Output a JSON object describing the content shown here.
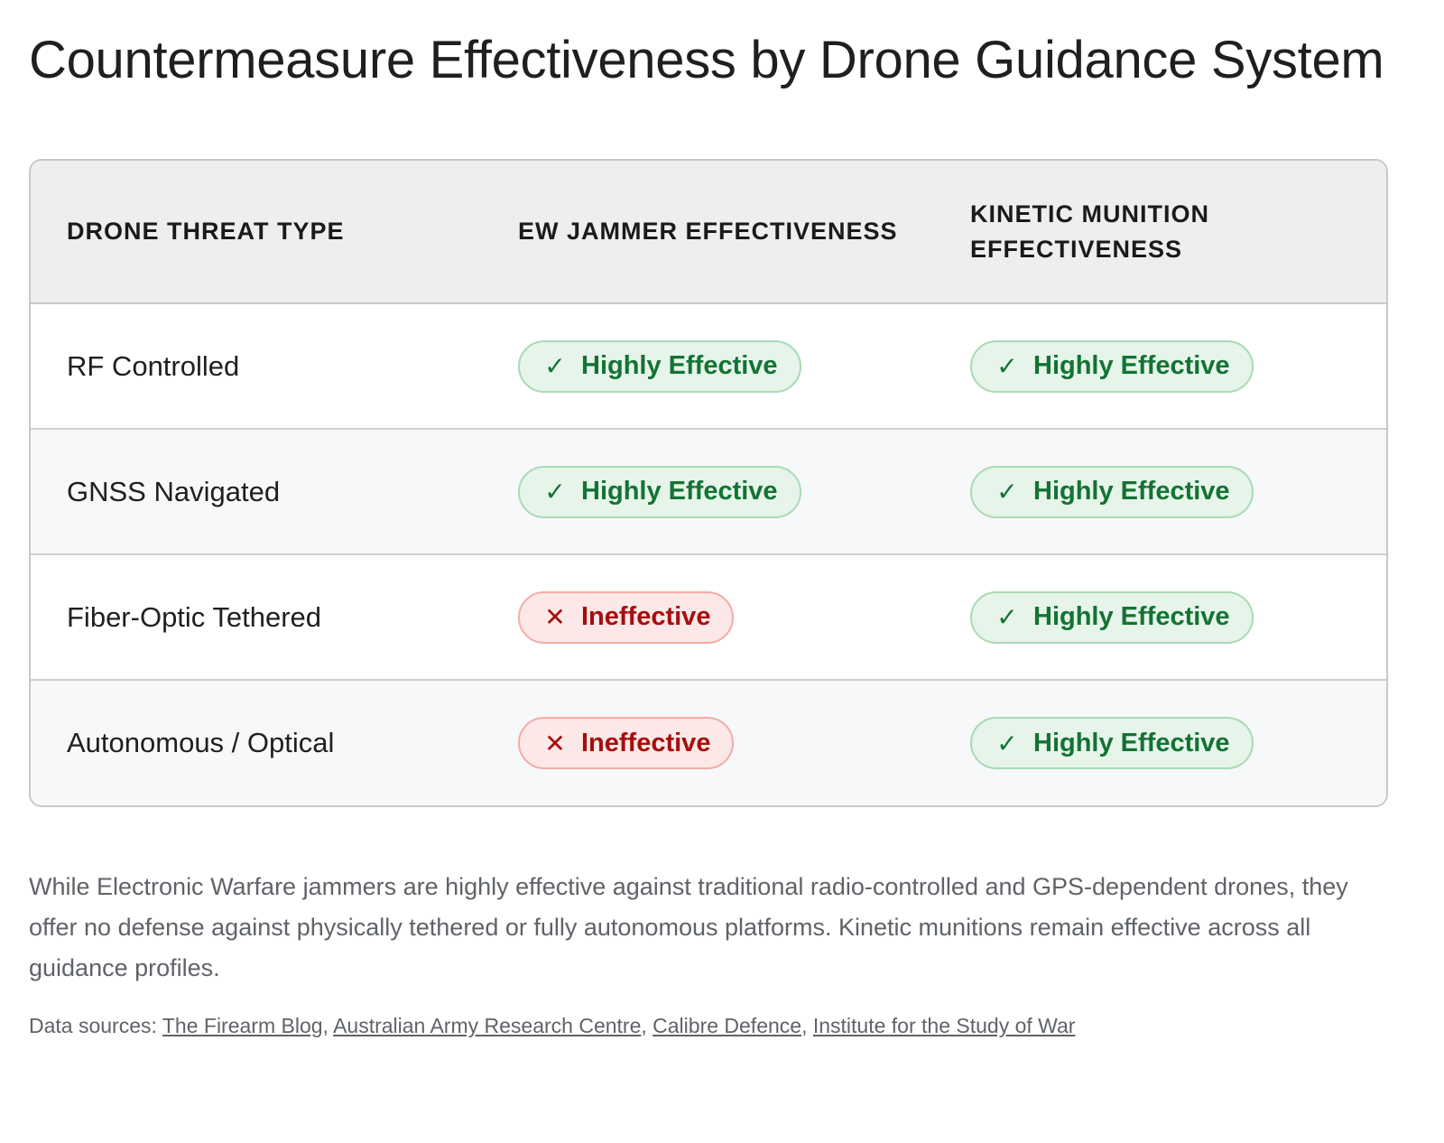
{
  "title": "Countermeasure Effectiveness by Drone Guidance System",
  "table": {
    "headers": [
      "DRONE THREAT TYPE",
      "EW JAMMER EFFECTIVENESS",
      "KINETIC MUNITION EFFECTIVENESS"
    ],
    "rows": [
      {
        "threat": "RF Controlled",
        "ew": {
          "label": "Highly Effective",
          "status": "good",
          "icon": "check-icon",
          "glyph": "✓"
        },
        "kinetic": {
          "label": "Highly Effective",
          "status": "good",
          "icon": "check-icon",
          "glyph": "✓"
        }
      },
      {
        "threat": "GNSS Navigated",
        "ew": {
          "label": "Highly Effective",
          "status": "good",
          "icon": "check-icon",
          "glyph": "✓"
        },
        "kinetic": {
          "label": "Highly Effective",
          "status": "good",
          "icon": "check-icon",
          "glyph": "✓"
        }
      },
      {
        "threat": "Fiber-Optic Tethered",
        "ew": {
          "label": "Ineffective",
          "status": "bad",
          "icon": "x-icon",
          "glyph": "✕"
        },
        "kinetic": {
          "label": "Highly Effective",
          "status": "good",
          "icon": "check-icon",
          "glyph": "✓"
        }
      },
      {
        "threat": "Autonomous / Optical",
        "ew": {
          "label": "Ineffective",
          "status": "bad",
          "icon": "x-icon",
          "glyph": "✕"
        },
        "kinetic": {
          "label": "Highly Effective",
          "status": "good",
          "icon": "check-icon",
          "glyph": "✓"
        }
      }
    ]
  },
  "colors": {
    "good_text": "#137333",
    "good_bg": "#e6f4ea",
    "bad_text": "#a50e0e",
    "bad_bg": "#fce8e6",
    "header_bg": "#eeeeee"
  },
  "summary": "While Electronic Warfare jammers are highly effective against traditional radio-controlled and GPS-dependent drones, they offer no defense against physically tethered or fully autonomous platforms. Kinetic munitions remain effective across all guidance profiles.",
  "sources": {
    "label": "Data sources: ",
    "links": [
      "The Firearm Blog",
      "Australian Army Research Centre",
      "Calibre Defence",
      "Institute for the Study of War"
    ]
  }
}
